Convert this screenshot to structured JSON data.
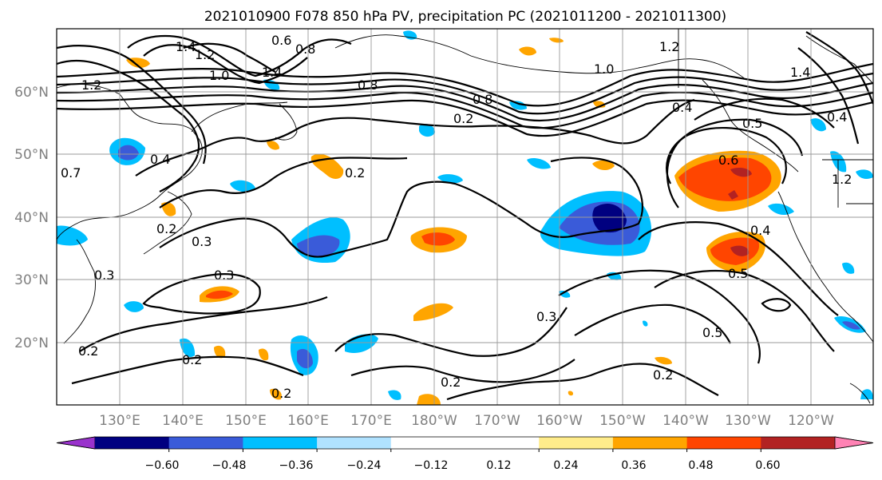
{
  "title": "2021010900 F078 850 hPa PV, precipitation PC (2021011200 - 2021011300)",
  "map": {
    "lon_labels": [
      "130°E",
      "140°E",
      "150°E",
      "160°E",
      "170°E",
      "180°W",
      "170°W",
      "160°W",
      "150°W",
      "140°W",
      "130°W",
      "120°W"
    ],
    "lat_labels": [
      "60°N",
      "50°N",
      "40°N",
      "30°N",
      "20°N"
    ],
    "lon_range": [
      120,
      250
    ],
    "lat_range": [
      10,
      70
    ],
    "contour_labels": [
      "1.4",
      "1.2",
      "1.0",
      "0.6",
      "0.8",
      "1.4",
      "1.2",
      "0.8",
      "0.8",
      "0.2",
      "0.4",
      "0.7",
      "0.2",
      "0.3",
      "0.3",
      "0.3",
      "0.2",
      "0.2",
      "0.2",
      "0.3",
      "0.2",
      "0.2",
      "1.2",
      "1.0",
      "0.4",
      "0.5",
      "0.6",
      "0.4",
      "0.5",
      "0.5",
      "0.2",
      "1.4",
      "0.4",
      "1.2"
    ]
  },
  "colorbar": {
    "colors": [
      "#9932cc",
      "#000080",
      "#3a5bd9",
      "#00bfff",
      "#b0e2ff",
      "#ffffff",
      "#ffffff",
      "#ffec8b",
      "#ffa500",
      "#ff4500",
      "#b22222",
      "#ff82b4"
    ],
    "tick_labels": [
      "−0.60",
      "−0.48",
      "−0.36",
      "−0.24",
      "−0.12",
      "0.12",
      "0.24",
      "0.36",
      "0.48",
      "0.60"
    ]
  }
}
